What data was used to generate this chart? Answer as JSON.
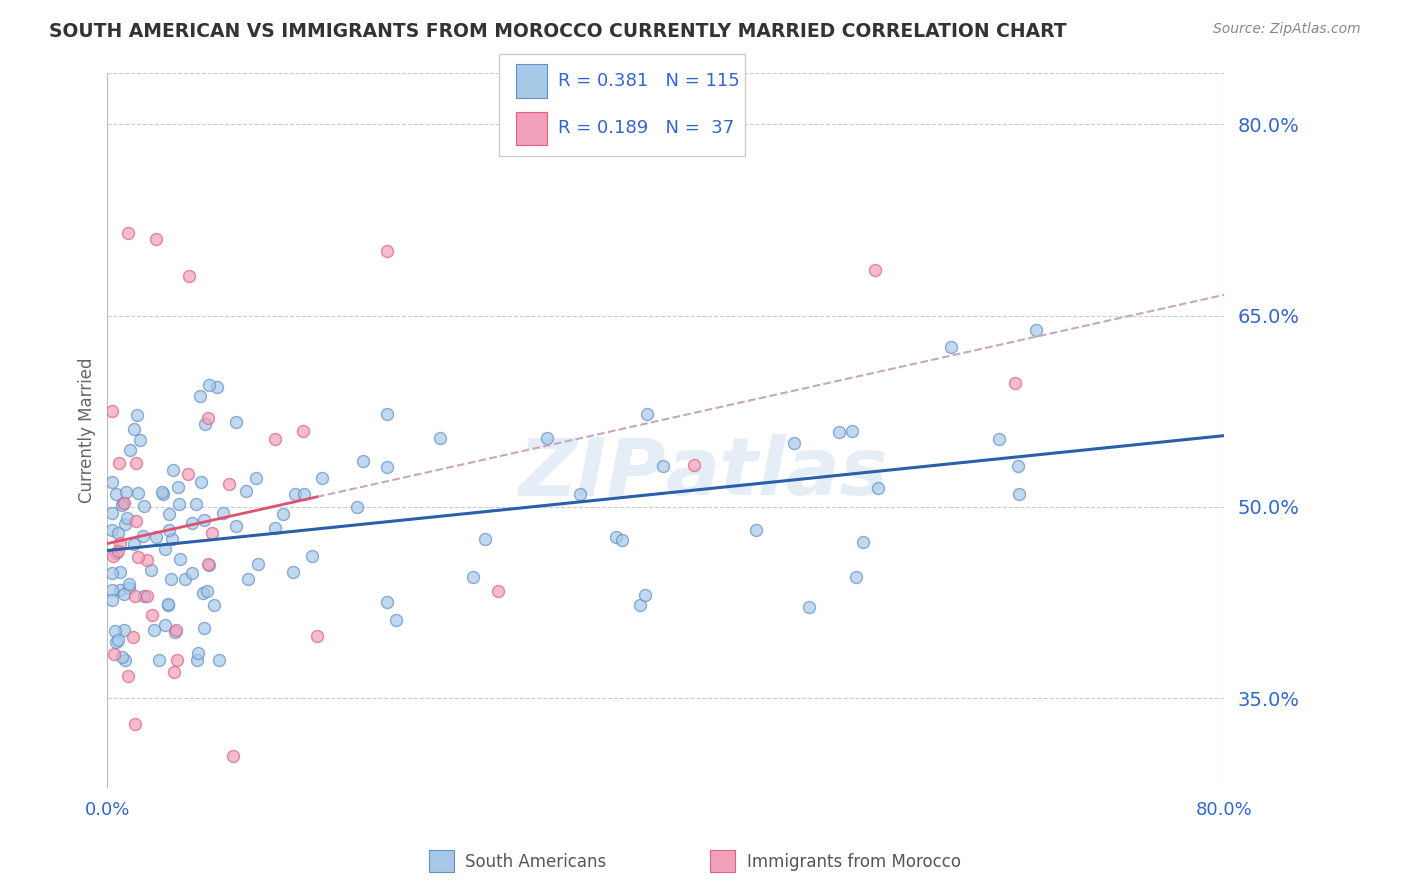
{
  "title": "SOUTH AMERICAN VS IMMIGRANTS FROM MOROCCO CURRENTLY MARRIED CORRELATION CHART",
  "source_text": "Source: ZipAtlas.com",
  "ylabel": "Currently Married",
  "xlim": [
    0.0,
    80.0
  ],
  "ylim": [
    28.0,
    84.0
  ],
  "yticks": [
    35.0,
    50.0,
    65.0,
    80.0
  ],
  "ytick_labels": [
    "35.0%",
    "50.0%",
    "65.0%",
    "80.0%"
  ],
  "legend_R1": "R = 0.381",
  "legend_N1": "N = 115",
  "legend_R2": "R = 0.189",
  "legend_N2": "N =  37",
  "legend_label1": "South Americans",
  "legend_label2": "Immigrants from Morocco",
  "color_blue": "#a8c8e8",
  "color_pink": "#f0a0b8",
  "color_blue_edge": "#6090c8",
  "color_pink_edge": "#e06080",
  "color_blue_line": "#2a5faa",
  "color_pink_line": "#e05070",
  "color_dashed_ext": "#c8a8b8",
  "color_title": "#333333",
  "color_source": "#888888",
  "color_axis_label": "#3366cc",
  "color_tick_right": "#3366cc",
  "color_tick_bottom": "#3366cc",
  "watermark": "ZIPatlas",
  "background_color": "#ffffff",
  "grid_color": "#cccccc",
  "sa_seed": 101,
  "mo_seed": 202
}
